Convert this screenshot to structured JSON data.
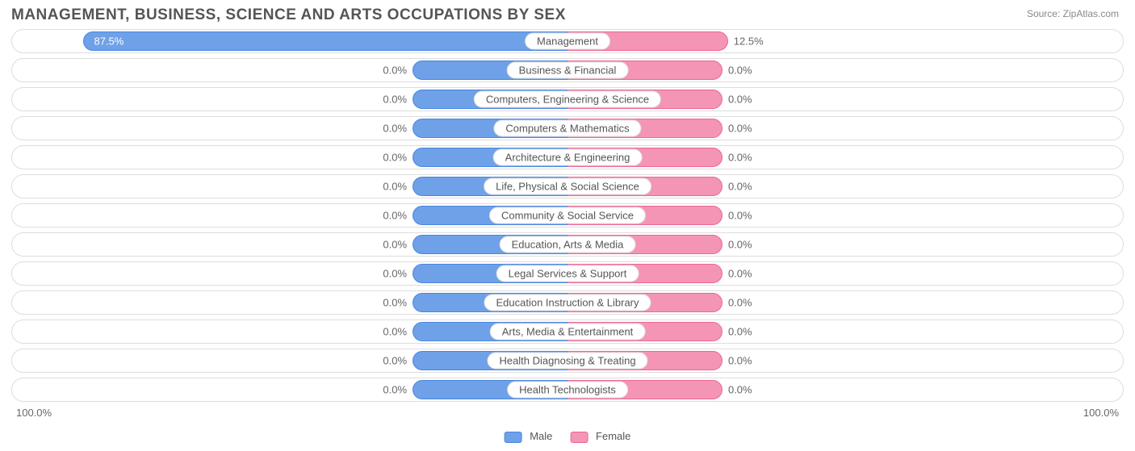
{
  "title": "MANAGEMENT, BUSINESS, SCIENCE AND ARTS OCCUPATIONS BY SEX",
  "source": "Source: ZipAtlas.com",
  "colors": {
    "male_fill": "#6ea1e7",
    "male_border": "#4a86e0",
    "female_fill": "#f495b6",
    "female_border": "#ee6595",
    "row_border": "#dddddd",
    "text": "#555555",
    "text_muted": "#666666",
    "background": "#ffffff"
  },
  "axis": {
    "left": "100.0%",
    "right": "100.0%"
  },
  "legend": {
    "male": "Male",
    "female": "Female"
  },
  "chart": {
    "type": "diverging-bar",
    "default_bar_pct": 28,
    "rows": [
      {
        "label": "Management",
        "male_pct": 87.5,
        "female_pct": 12.5,
        "male_label": "87.5%",
        "female_label": "12.5%",
        "male_bar": 87.5,
        "female_bar": 29,
        "male_label_inside": true
      },
      {
        "label": "Business & Financial",
        "male_pct": 0.0,
        "female_pct": 0.0,
        "male_label": "0.0%",
        "female_label": "0.0%"
      },
      {
        "label": "Computers, Engineering & Science",
        "male_pct": 0.0,
        "female_pct": 0.0,
        "male_label": "0.0%",
        "female_label": "0.0%"
      },
      {
        "label": "Computers & Mathematics",
        "male_pct": 0.0,
        "female_pct": 0.0,
        "male_label": "0.0%",
        "female_label": "0.0%"
      },
      {
        "label": "Architecture & Engineering",
        "male_pct": 0.0,
        "female_pct": 0.0,
        "male_label": "0.0%",
        "female_label": "0.0%"
      },
      {
        "label": "Life, Physical & Social Science",
        "male_pct": 0.0,
        "female_pct": 0.0,
        "male_label": "0.0%",
        "female_label": "0.0%"
      },
      {
        "label": "Community & Social Service",
        "male_pct": 0.0,
        "female_pct": 0.0,
        "male_label": "0.0%",
        "female_label": "0.0%"
      },
      {
        "label": "Education, Arts & Media",
        "male_pct": 0.0,
        "female_pct": 0.0,
        "male_label": "0.0%",
        "female_label": "0.0%"
      },
      {
        "label": "Legal Services & Support",
        "male_pct": 0.0,
        "female_pct": 0.0,
        "male_label": "0.0%",
        "female_label": "0.0%"
      },
      {
        "label": "Education Instruction & Library",
        "male_pct": 0.0,
        "female_pct": 0.0,
        "male_label": "0.0%",
        "female_label": "0.0%"
      },
      {
        "label": "Arts, Media & Entertainment",
        "male_pct": 0.0,
        "female_pct": 0.0,
        "male_label": "0.0%",
        "female_label": "0.0%"
      },
      {
        "label": "Health Diagnosing & Treating",
        "male_pct": 0.0,
        "female_pct": 0.0,
        "male_label": "0.0%",
        "female_label": "0.0%"
      },
      {
        "label": "Health Technologists",
        "male_pct": 0.0,
        "female_pct": 0.0,
        "male_label": "0.0%",
        "female_label": "0.0%"
      }
    ]
  }
}
